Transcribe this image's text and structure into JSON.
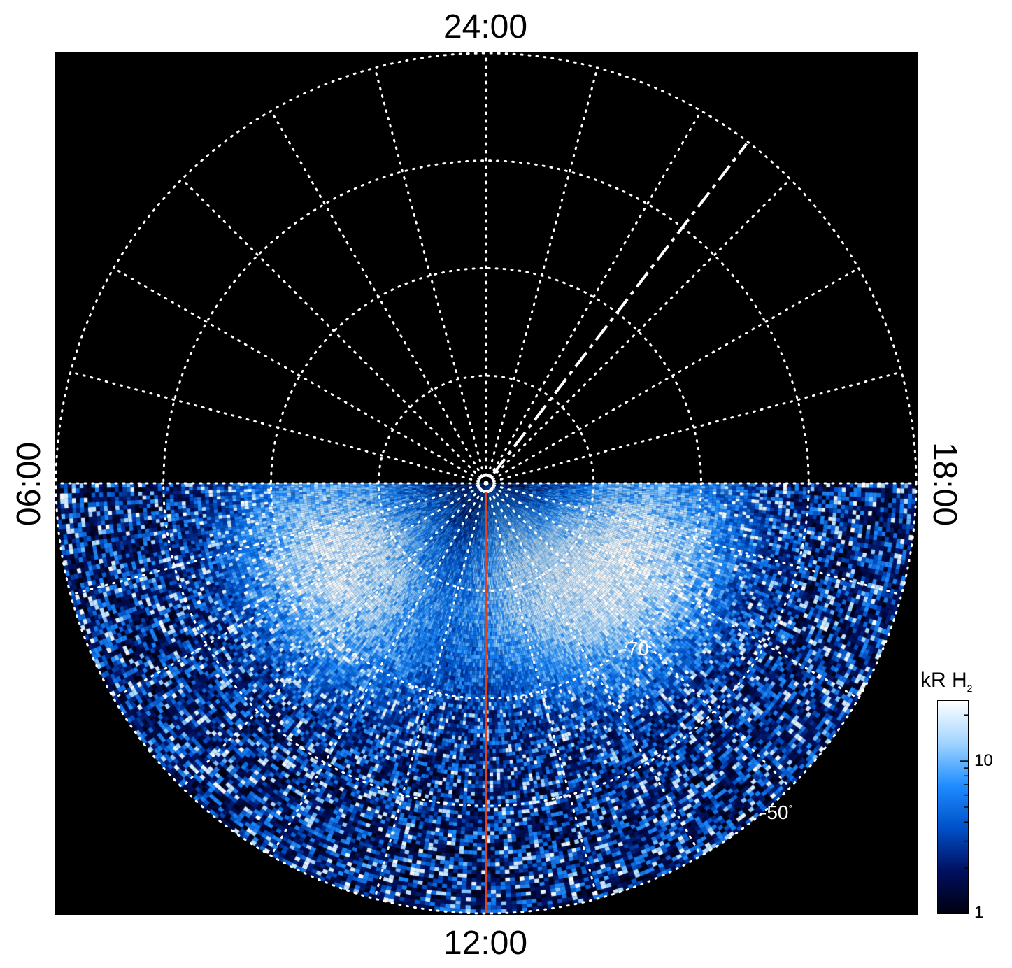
{
  "local_time_labels": {
    "top": "24:00",
    "bottom": "12:00",
    "left": "06:00",
    "right": "18:00"
  },
  "latitude_labels": [
    {
      "text": "-70",
      "unit": "°",
      "lat": -70
    },
    {
      "text": "-50",
      "unit": "°",
      "lat": -50
    }
  ],
  "colorbar": {
    "title": "kR H",
    "title_sub": "2",
    "ticks": [
      "10",
      "1"
    ],
    "scale": "log",
    "range": [
      1,
      25
    ]
  },
  "colors": {
    "background": "#000000",
    "grid": "#ffffff",
    "meridian_line": "#e0401a",
    "colormap": [
      "#000010",
      "#001060",
      "#0050c8",
      "#1e8cff",
      "#a0d4ff",
      "#ffffff"
    ]
  },
  "chart_data": {
    "type": "heatmap",
    "projection": "polar (south pole centered, local time azimuth)",
    "colatitude_grid_deg": [
      10,
      20,
      30,
      40
    ],
    "local_time_grid_hours": 1,
    "title": "",
    "value_units": "kR H2",
    "color_scale": "log",
    "value_range": [
      1,
      25
    ],
    "data_coverage": "dayside half (06:00–12:00–18:00)",
    "features": [
      {
        "name": "dawn auroral arc",
        "local_time_hours": 8.0,
        "lat_deg": -75,
        "intensity_kR": 20
      },
      {
        "name": "dusk auroral arc",
        "local_time_hours": 16.0,
        "lat_deg": -75,
        "intensity_kR": 20
      },
      {
        "name": "inner oval arc",
        "local_time_hours": 13.5,
        "lat_deg": -80,
        "intensity_kR": 12
      }
    ],
    "overlays": [
      {
        "type": "meridian",
        "local_time_hours": 12,
        "color": "#e0401a"
      },
      {
        "type": "dashed line",
        "local_time_hours": 21.5,
        "style": "dash"
      }
    ]
  }
}
